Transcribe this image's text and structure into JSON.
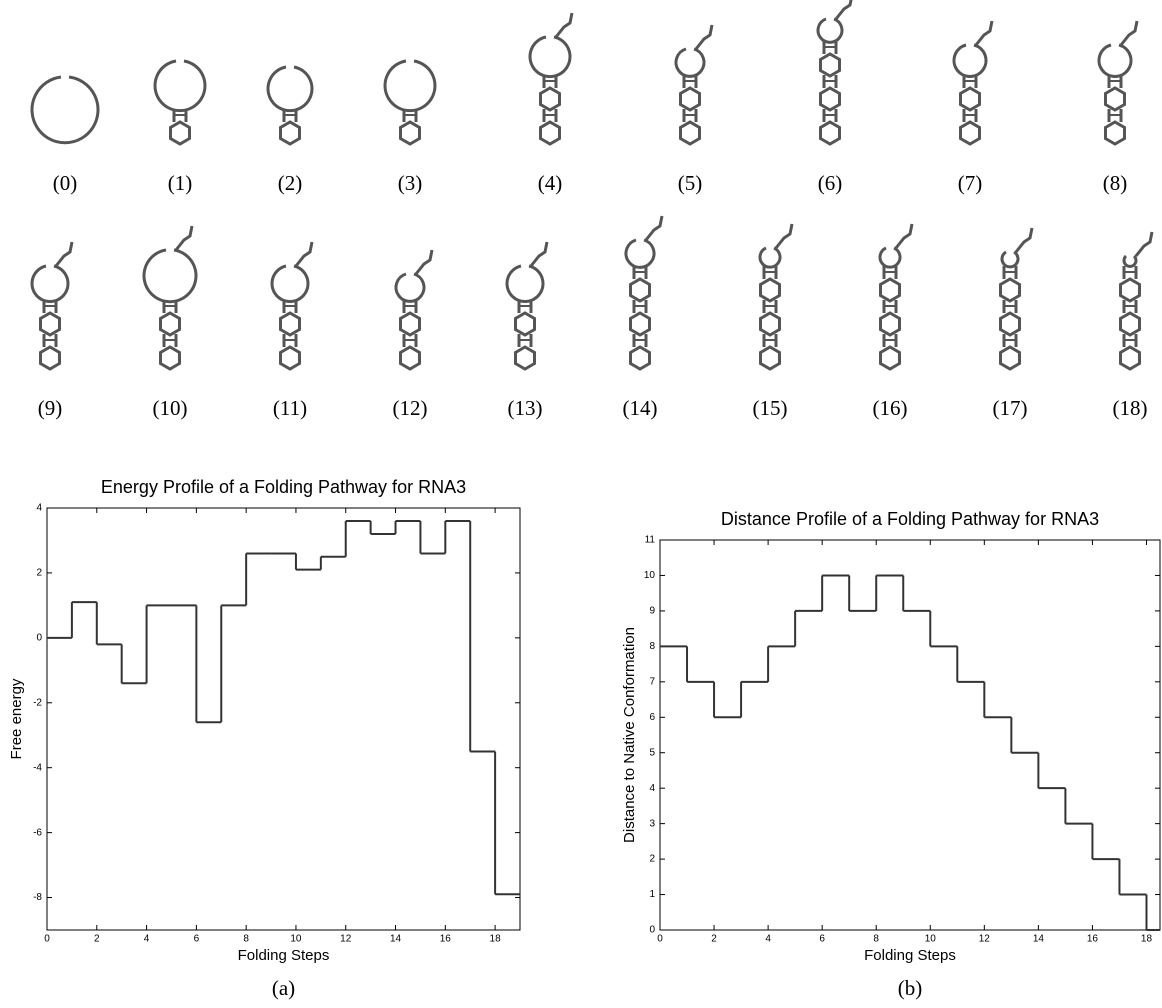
{
  "structures": [
    {
      "label": "(0)"
    },
    {
      "label": "(1)"
    },
    {
      "label": "(2)"
    },
    {
      "label": "(3)"
    },
    {
      "label": "(4)"
    },
    {
      "label": "(5)"
    },
    {
      "label": "(6)"
    },
    {
      "label": "(7)"
    },
    {
      "label": "(8)"
    },
    {
      "label": "(9)"
    },
    {
      "label": "(10)"
    },
    {
      "label": "(11)"
    },
    {
      "label": "(12)"
    },
    {
      "label": "(13)"
    },
    {
      "label": "(14)"
    },
    {
      "label": "(15)"
    },
    {
      "label": "(16)"
    },
    {
      "label": "(17)"
    },
    {
      "label": "(18)"
    }
  ],
  "chart_data": [
    {
      "type": "step",
      "title": "Energy Profile of a Folding Pathway for RNA3",
      "x_label": "Folding Steps",
      "y_label": "Free energy",
      "caption": "(a)",
      "x": [
        0,
        1,
        2,
        3,
        4,
        5,
        6,
        7,
        8,
        9,
        10,
        11,
        12,
        13,
        14,
        15,
        16,
        17,
        18
      ],
      "values": [
        0,
        1.1,
        -0.2,
        -1.4,
        1,
        1,
        -2.6,
        1,
        2.6,
        2.6,
        2.1,
        2.5,
        3.6,
        3.2,
        3.6,
        2.6,
        3.6,
        -3.5,
        -7.9
      ],
      "color": "#333333",
      "xlim": [
        0,
        19
      ],
      "xticks": [
        0,
        2,
        4,
        6,
        8,
        10,
        12,
        14,
        16,
        18
      ],
      "ylim": [
        -9,
        4
      ],
      "yticks": [
        -8,
        -6,
        -4,
        -2,
        0,
        2,
        4
      ],
      "grid": false
    },
    {
      "type": "step",
      "title": "Distance Profile of a Folding Pathway for RNA3",
      "x_label": "Folding Steps",
      "y_label": "Distance to Native Conformation",
      "caption": "(b)",
      "x": [
        0,
        1,
        2,
        3,
        4,
        5,
        6,
        7,
        8,
        9,
        10,
        11,
        12,
        13,
        14,
        15,
        16,
        17,
        18
      ],
      "values": [
        8,
        7,
        6,
        7,
        8,
        9,
        10,
        9,
        10,
        9,
        8,
        7,
        6,
        5,
        4,
        3,
        2,
        1,
        0
      ],
      "color": "#333333",
      "xlim": [
        0,
        18.5
      ],
      "xticks": [
        0,
        2,
        4,
        6,
        8,
        10,
        12,
        14,
        16,
        18
      ],
      "ylim": [
        0,
        11
      ],
      "yticks": [
        0,
        1,
        2,
        3,
        4,
        5,
        6,
        7,
        8,
        9,
        10,
        11
      ],
      "grid": false
    }
  ]
}
